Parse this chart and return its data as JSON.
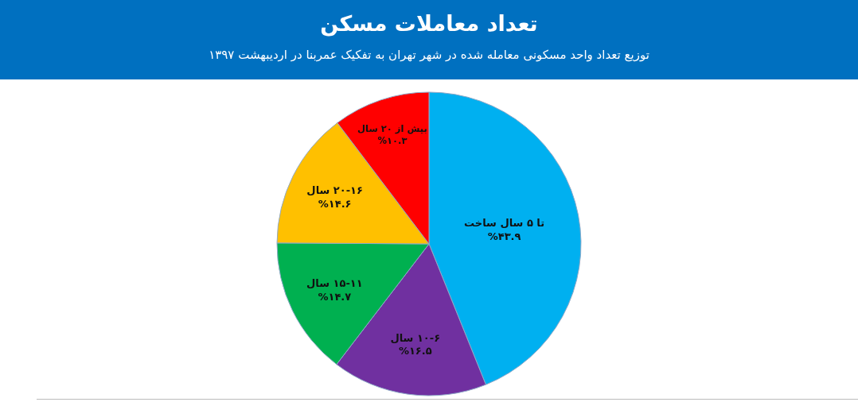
{
  "chart_data": {
    "type": "pie",
    "title": "تعداد معاملات مسکن",
    "subtitle": "توزیع تعداد واحد مسکونی معامله شده در شهر تهران به تفکیک عمربنا در اردیبهشت ۱۳۹۷",
    "categories": [
      "تا ۵ سال ساخت",
      "۱۰-۶ سال",
      "۱۵-۱۱ سال",
      "۲۰-۱۶ سال",
      "بیش از ۲۰ سال"
    ],
    "values": [
      43.9,
      16.5,
      14.7,
      14.6,
      10.3
    ],
    "value_labels": [
      "%۴۳.۹",
      "%۱۶.۵",
      "%۱۴.۷",
      "%۱۴.۶",
      "%۱۰.۳"
    ],
    "colors": [
      "#00b0f0",
      "#7030a0",
      "#00b050",
      "#ffc000",
      "#ff0000"
    ],
    "legend": false
  }
}
